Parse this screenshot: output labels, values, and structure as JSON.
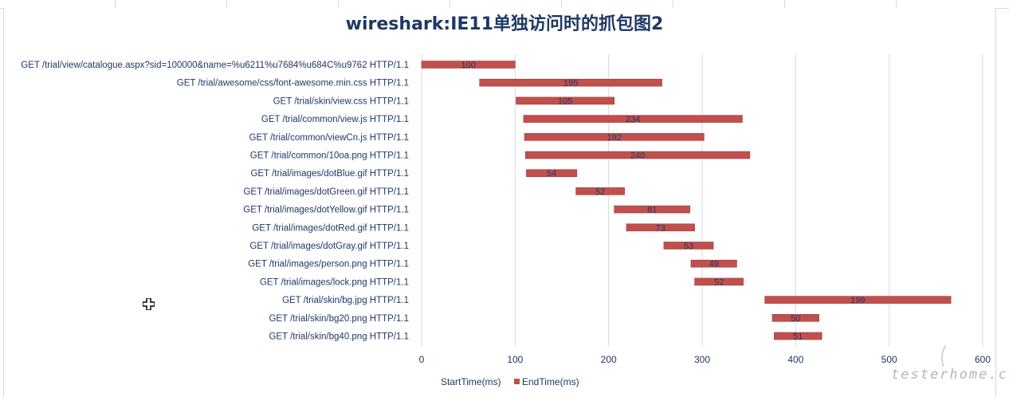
{
  "chart_data": {
    "type": "bar",
    "orientation": "horizontal",
    "stacked": true,
    "title": "wireshark:IE11单独访问时的抓包图2",
    "categories": [
      "GET /trial/view/catalogue.aspx?sid=100000&name=%u6211%u7684%u684C%u9762 HTTP/1.1",
      "GET /trial/awesome/css/font-awesome.min.css HTTP/1.1",
      "GET /trial/skin/view.css HTTP/1.1",
      "GET /trial/common/view.js HTTP/1.1",
      "GET /trial/common/viewCn.js HTTP/1.1",
      "GET /trial/common/10oa.png HTTP/1.1",
      "GET /trial/images/dotBlue.gif HTTP/1.1",
      "GET /trial/images/dotGreen.gif HTTP/1.1",
      "GET /trial/images/dotYellow.gif HTTP/1.1",
      "GET /trial/images/dotRed.gif HTTP/1.1",
      "GET /trial/images/dotGray.gif HTTP/1.1",
      "GET /trial/images/person.png HTTP/1.1",
      "GET /trial/images/lock.png HTTP/1.1",
      "GET /trial/skin/bg.jpg HTTP/1.1",
      "GET /trial/skin/bg20.png HTTP/1.1",
      "GET /trial/skin/bg40.png HTTP/1.1"
    ],
    "series": [
      {
        "name": "StartTime(ms)",
        "color": "none",
        "values": [
          0,
          62,
          101,
          109,
          110,
          111,
          112,
          165,
          206,
          219,
          259,
          288,
          292,
          367,
          375,
          377
        ]
      },
      {
        "name": "EndTime(ms)",
        "color": "#c0504d",
        "values": [
          100,
          195,
          105,
          234,
          192,
          240,
          54,
          52,
          81,
          73,
          53,
          49,
          52,
          199,
          50,
          51
        ]
      }
    ],
    "data_labels": [
      "100",
      "195",
      "105",
      "234",
      "192",
      "240",
      "54",
      "52",
      "81",
      "73",
      "53",
      "49",
      "52",
      "199",
      "50",
      "51"
    ],
    "xlim": [
      0,
      600
    ],
    "x_ticks": [
      "0",
      "100",
      "200",
      "300",
      "400",
      "500",
      "600"
    ],
    "grid": true,
    "legend_position": "bottom"
  },
  "colors": {
    "bar_fill": "#c0504d",
    "bar_edge": "#a33c39",
    "label_text": "#1f3864",
    "grid": "#d9d9d9",
    "tick_text": "#1f3864"
  },
  "watermark": {
    "text": "testerhome.com"
  }
}
